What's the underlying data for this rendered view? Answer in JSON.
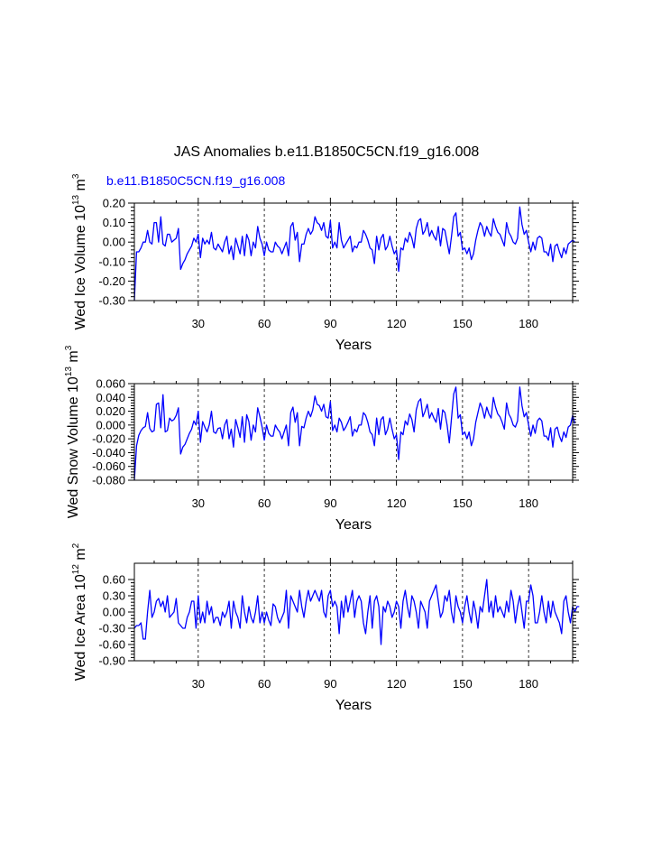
{
  "title": "JAS Anomalies b.e11.B1850C5CN.f19_g16.008",
  "legend_text": "b.e11.B1850C5CN.f19_g16.008",
  "colors": {
    "series": "#0000ff",
    "axis": "#000000",
    "grid": "#000000",
    "background": "#ffffff"
  },
  "chart_data": [
    {
      "type": "line",
      "xlabel": "Years",
      "ylabel": {
        "prefix": "Wed Ice Volume 10",
        "exp": "13",
        "unit": " m",
        "unit_exp": "3"
      },
      "xlim": [
        1,
        200
      ],
      "ylim": [
        -0.3,
        0.2
      ],
      "xticks": [
        30,
        60,
        90,
        120,
        150,
        180
      ],
      "yticks": [
        {
          "value": -0.3,
          "label": "-0.30"
        },
        {
          "value": -0.2,
          "label": "-0.20"
        },
        {
          "value": -0.1,
          "label": "-0.10"
        },
        {
          "value": 0.0,
          "label": "0.00"
        },
        {
          "value": 0.1,
          "label": "0.10"
        },
        {
          "value": 0.2,
          "label": "0.20"
        }
      ],
      "series": [
        {
          "name": "b.e11.B1850C5CN.f19_g16.008",
          "x_start": 1,
          "values": [
            -0.3,
            -0.05,
            -0.05,
            -0.03,
            0.0,
            0.0,
            0.06,
            0.0,
            -0.01,
            0.1,
            0.1,
            0.0,
            0.13,
            -0.01,
            -0.02,
            0.04,
            0.04,
            0.0,
            0.01,
            0.02,
            0.07,
            -0.14,
            -0.11,
            -0.09,
            -0.06,
            -0.04,
            -0.02,
            0.02,
            0.0,
            0.04,
            -0.08,
            0.02,
            -0.01,
            0.01,
            -0.01,
            0.05,
            -0.03,
            -0.04,
            -0.01,
            -0.03,
            -0.05,
            0.0,
            0.03,
            -0.06,
            -0.02,
            -0.09,
            0.02,
            -0.02,
            -0.06,
            0.03,
            -0.07,
            0.04,
            0.01,
            -0.07,
            0.0,
            -0.03,
            0.08,
            0.02,
            -0.01,
            -0.07,
            0.0,
            -0.04,
            -0.05,
            -0.05,
            0.0,
            -0.02,
            -0.03,
            -0.06,
            -0.03,
            0.0,
            -0.07,
            0.08,
            0.1,
            0.01,
            0.05,
            -0.1,
            -0.01,
            -0.01,
            0.04,
            0.07,
            0.04,
            0.06,
            0.13,
            0.1,
            0.09,
            0.06,
            0.1,
            0.03,
            0.02,
            0.11,
            -0.03,
            0.0,
            -0.03,
            0.1,
            0.01,
            -0.03,
            -0.01,
            0.01,
            0.03,
            -0.05,
            -0.02,
            -0.03,
            0.0,
            0.0,
            0.06,
            0.04,
            0.01,
            -0.03,
            -0.04,
            -0.11,
            0.03,
            -0.04,
            0.02,
            0.04,
            -0.04,
            -0.02,
            0.03,
            -0.02,
            -0.06,
            -0.04,
            -0.15,
            -0.03,
            -0.04,
            0.02,
            0.0,
            0.05,
            0.02,
            -0.03,
            0.07,
            0.11,
            0.12,
            0.04,
            0.06,
            0.1,
            0.03,
            0.06,
            0.03,
            0.01,
            0.08,
            -0.02,
            0.07,
            0.06,
            0.0,
            -0.06,
            0.03,
            0.13,
            0.15,
            0.03,
            0.05,
            -0.04,
            -0.03,
            -0.06,
            -0.03,
            -0.09,
            -0.06,
            0.01,
            0.06,
            0.1,
            0.08,
            0.03,
            0.08,
            0.05,
            0.03,
            0.12,
            0.08,
            0.05,
            0.04,
            0.01,
            -0.02,
            0.1,
            0.05,
            0.03,
            0.0,
            -0.01,
            0.02,
            0.18,
            0.09,
            0.04,
            0.06,
            0.0,
            -0.05,
            0.0,
            -0.04,
            0.02,
            0.03,
            0.02,
            -0.05,
            -0.05,
            -0.07,
            -0.01,
            -0.1,
            -0.02,
            -0.01,
            -0.05,
            -0.08,
            -0.03,
            -0.06,
            -0.01,
            0.0,
            0.01,
            0.0
          ]
        }
      ]
    },
    {
      "type": "line",
      "xlabel": "Years",
      "ylabel": {
        "prefix": "Wed Snow Volume 10",
        "exp": "13",
        "unit": " m",
        "unit_exp": "3"
      },
      "xlim": [
        1,
        200
      ],
      "ylim": [
        -0.08,
        0.06
      ],
      "xticks": [
        30,
        60,
        90,
        120,
        150,
        180
      ],
      "yticks": [
        {
          "value": -0.08,
          "label": "-0.080"
        },
        {
          "value": -0.06,
          "label": "-0.060"
        },
        {
          "value": -0.04,
          "label": "-0.040"
        },
        {
          "value": -0.02,
          "label": "-0.020"
        },
        {
          "value": 0.0,
          "label": "0.000"
        },
        {
          "value": 0.02,
          "label": "0.020"
        },
        {
          "value": 0.04,
          "label": "0.040"
        },
        {
          "value": 0.06,
          "label": "0.060"
        }
      ],
      "series": [
        {
          "name": "b.e11.B1850C5CN.f19_g16.008",
          "x_start": 1,
          "values": [
            -0.08,
            -0.03,
            -0.015,
            -0.008,
            -0.004,
            -0.002,
            0.018,
            -0.005,
            -0.01,
            -0.008,
            0.03,
            0.032,
            -0.004,
            0.044,
            -0.01,
            -0.008,
            0.01,
            0.006,
            0.008,
            0.014,
            0.025,
            -0.042,
            -0.032,
            -0.028,
            -0.02,
            -0.012,
            -0.006,
            0.006,
            0.0,
            0.02,
            -0.025,
            0.005,
            -0.003,
            -0.01,
            0.0,
            0.02,
            -0.01,
            -0.012,
            -0.005,
            -0.004,
            -0.02,
            0.0,
            0.008,
            -0.02,
            -0.006,
            -0.032,
            0.008,
            -0.004,
            -0.018,
            0.012,
            -0.025,
            0.015,
            0.005,
            -0.022,
            0.0,
            -0.01,
            0.025,
            0.012,
            -0.003,
            -0.022,
            0.0,
            -0.012,
            -0.016,
            -0.016,
            0.0,
            -0.006,
            -0.01,
            -0.02,
            -0.01,
            0.0,
            -0.03,
            0.018,
            0.026,
            0.004,
            0.018,
            -0.03,
            -0.002,
            -0.004,
            0.01,
            0.02,
            0.012,
            0.022,
            0.042,
            0.03,
            0.028,
            0.02,
            0.03,
            0.012,
            0.01,
            0.034,
            -0.008,
            0.0,
            -0.01,
            0.01,
            0.004,
            -0.008,
            -0.003,
            0.004,
            0.012,
            -0.016,
            -0.006,
            -0.01,
            0.0,
            0.0,
            0.018,
            0.014,
            0.004,
            -0.01,
            -0.014,
            -0.03,
            0.01,
            -0.014,
            0.008,
            0.012,
            -0.014,
            -0.006,
            0.01,
            -0.006,
            -0.02,
            -0.014,
            -0.05,
            -0.01,
            -0.014,
            0.006,
            0.0,
            0.016,
            0.008,
            -0.01,
            0.022,
            0.034,
            0.038,
            0.012,
            0.02,
            0.03,
            0.01,
            0.018,
            0.01,
            0.004,
            0.024,
            -0.006,
            0.022,
            0.018,
            0.0,
            -0.026,
            0.01,
            0.045,
            0.055,
            0.01,
            0.015,
            -0.014,
            -0.01,
            -0.02,
            -0.01,
            -0.03,
            -0.02,
            0.004,
            0.018,
            0.032,
            0.024,
            0.01,
            0.026,
            0.016,
            0.01,
            0.04,
            0.026,
            0.016,
            0.012,
            0.004,
            -0.006,
            0.032,
            0.016,
            0.01,
            0.0,
            -0.003,
            0.006,
            0.055,
            0.028,
            0.012,
            0.018,
            0.0,
            -0.016,
            0.0,
            -0.012,
            0.006,
            0.01,
            0.006,
            -0.016,
            -0.016,
            -0.022,
            -0.004,
            -0.032,
            -0.006,
            -0.003,
            -0.016,
            -0.024,
            -0.01,
            -0.018,
            -0.003,
            0.0,
            0.014,
            0.002
          ]
        }
      ]
    },
    {
      "type": "line",
      "xlabel": "Years",
      "ylabel": {
        "prefix": "Wed Ice Area 10",
        "exp": "12",
        "unit": " m",
        "unit_exp": "2"
      },
      "xlim": [
        1,
        200
      ],
      "ylim": [
        -0.9,
        0.9
      ],
      "xticks": [
        30,
        60,
        90,
        120,
        150,
        180
      ],
      "yticks": [
        {
          "value": -0.9,
          "label": "-0.90"
        },
        {
          "value": -0.6,
          "label": "-0.60"
        },
        {
          "value": -0.3,
          "label": "-0.30"
        },
        {
          "value": 0.0,
          "label": "0.00"
        },
        {
          "value": 0.3,
          "label": "0.30"
        },
        {
          "value": 0.6,
          "label": "0.60"
        }
      ],
      "series": [
        {
          "name": "b.e11.B1850C5CN.f19_g16.008",
          "x_start": 1,
          "values": [
            -0.3,
            -0.25,
            -0.25,
            -0.2,
            -0.5,
            -0.5,
            0.0,
            0.4,
            -0.1,
            0.0,
            0.2,
            0.25,
            0.1,
            0.2,
            0.0,
            0.3,
            -0.1,
            -0.05,
            0.0,
            0.25,
            -0.2,
            -0.25,
            -0.3,
            -0.3,
            -0.1,
            0.0,
            0.2,
            0.2,
            -0.3,
            0.3,
            -0.2,
            0.0,
            -0.2,
            0.2,
            -0.05,
            0.1,
            -0.2,
            -0.1,
            -0.1,
            -0.25,
            0.0,
            -0.1,
            0.0,
            0.2,
            -0.3,
            0.2,
            0.0,
            -0.1,
            -0.3,
            0.3,
            0.0,
            -0.2,
            0.1,
            -0.1,
            -0.2,
            0.0,
            0.3,
            -0.2,
            0.0,
            -0.2,
            0.0,
            -0.15,
            -0.25,
            0.15,
            0.1,
            -0.1,
            -0.2,
            -0.1,
            0.0,
            0.4,
            -0.3,
            0.3,
            0.2,
            0.1,
            0.0,
            0.4,
            0.1,
            -0.1,
            0.2,
            0.4,
            0.2,
            0.3,
            0.4,
            0.3,
            0.2,
            0.4,
            0.0,
            -0.1,
            0.3,
            0.4,
            0.1,
            0.2,
            0.1,
            -0.4,
            0.2,
            -0.1,
            0.3,
            0.0,
            0.2,
            0.4,
            -0.1,
            0.2,
            0.3,
            0.2,
            -0.2,
            -0.4,
            0.0,
            0.3,
            -0.3,
            0.2,
            0.3,
            0.1,
            -0.6,
            0.1,
            0.0,
            0.2,
            0.1,
            -0.1,
            0.0,
            0.2,
            0.1,
            -0.3,
            0.2,
            0.4,
            0.1,
            -0.1,
            0.3,
            0.2,
            0.0,
            -0.3,
            0.2,
            0.1,
            0.0,
            -0.3,
            0.2,
            0.3,
            0.4,
            0.5,
            0.2,
            -0.1,
            0.0,
            0.3,
            0.2,
            0.4,
            0.0,
            -0.2,
            0.3,
            0.1,
            0.0,
            -0.2,
            0.1,
            0.3,
            0.0,
            -0.2,
            0.2,
            0.0,
            -0.3,
            0.1,
            0.0,
            0.3,
            0.6,
            0.0,
            0.2,
            -0.1,
            0.3,
            0.0,
            0.1,
            0.0,
            -0.1,
            0.2,
            0.0,
            0.4,
            0.2,
            -0.2,
            0.1,
            0.3,
            0.0,
            -0.3,
            0.2,
            0.2,
            0.5,
            0.3,
            -0.2,
            -0.2,
            0.0,
            0.3,
            0.0,
            -0.2,
            0.2,
            -0.1,
            0.2,
            0.0,
            -0.1,
            -0.2,
            -0.4,
            0.2,
            0.3,
            0.0,
            -0.2,
            0.1,
            0.0,
            0.1,
            0.1
          ]
        }
      ]
    }
  ]
}
